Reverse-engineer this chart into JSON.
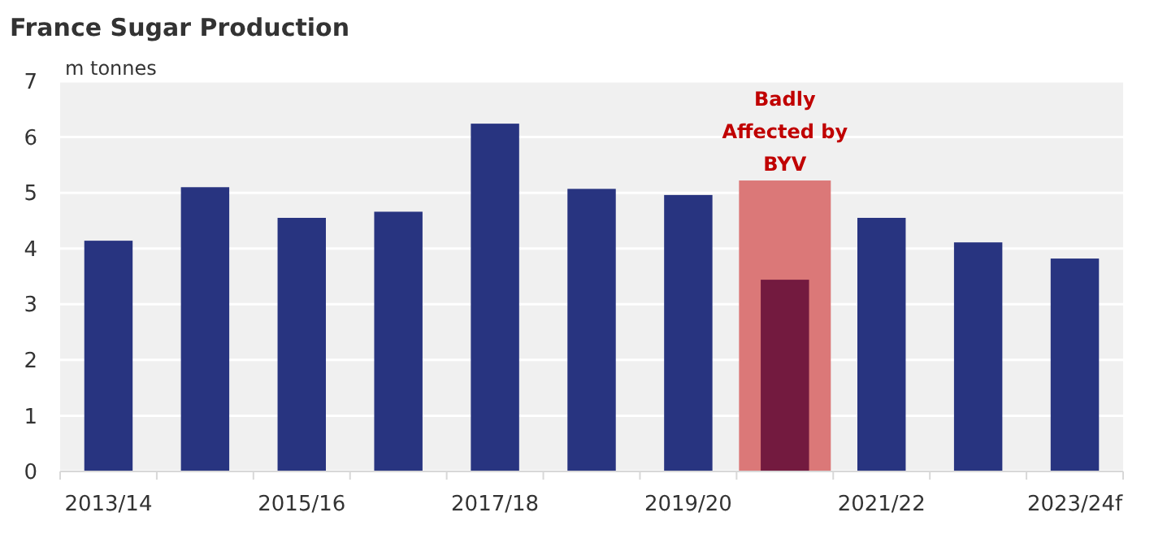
{
  "chart_data": {
    "type": "bar",
    "title": "France Sugar Production",
    "ylabel": "m tonnes",
    "categories": [
      "2013/14",
      null,
      "2015/16",
      null,
      "2017/18",
      null,
      "2019/20",
      null,
      "2021/22",
      null,
      "2023/24f"
    ],
    "series": [
      {
        "color": "#db7878",
        "values": [
          null,
          null,
          null,
          null,
          null,
          null,
          null,
          5.22,
          null,
          null,
          null
        ]
      },
      {
        "colors": [
          "#283480",
          "#283480",
          "#283480",
          "#283480",
          "#283480",
          "#283480",
          "#283480",
          "#731a3f",
          "#283480",
          "#283480",
          "#283480"
        ],
        "values": [
          4.14,
          5.1,
          4.55,
          4.66,
          6.24,
          5.07,
          4.96,
          3.44,
          4.55,
          4.11,
          3.82
        ]
      }
    ],
    "ylim": [
      0,
      7
    ],
    "yticks": [
      0,
      1,
      2,
      3,
      4,
      5,
      6,
      7
    ],
    "grid": "y",
    "annotations": [
      {
        "text": "Badly Affected by BYV",
        "y": 5.22
      }
    ]
  }
}
